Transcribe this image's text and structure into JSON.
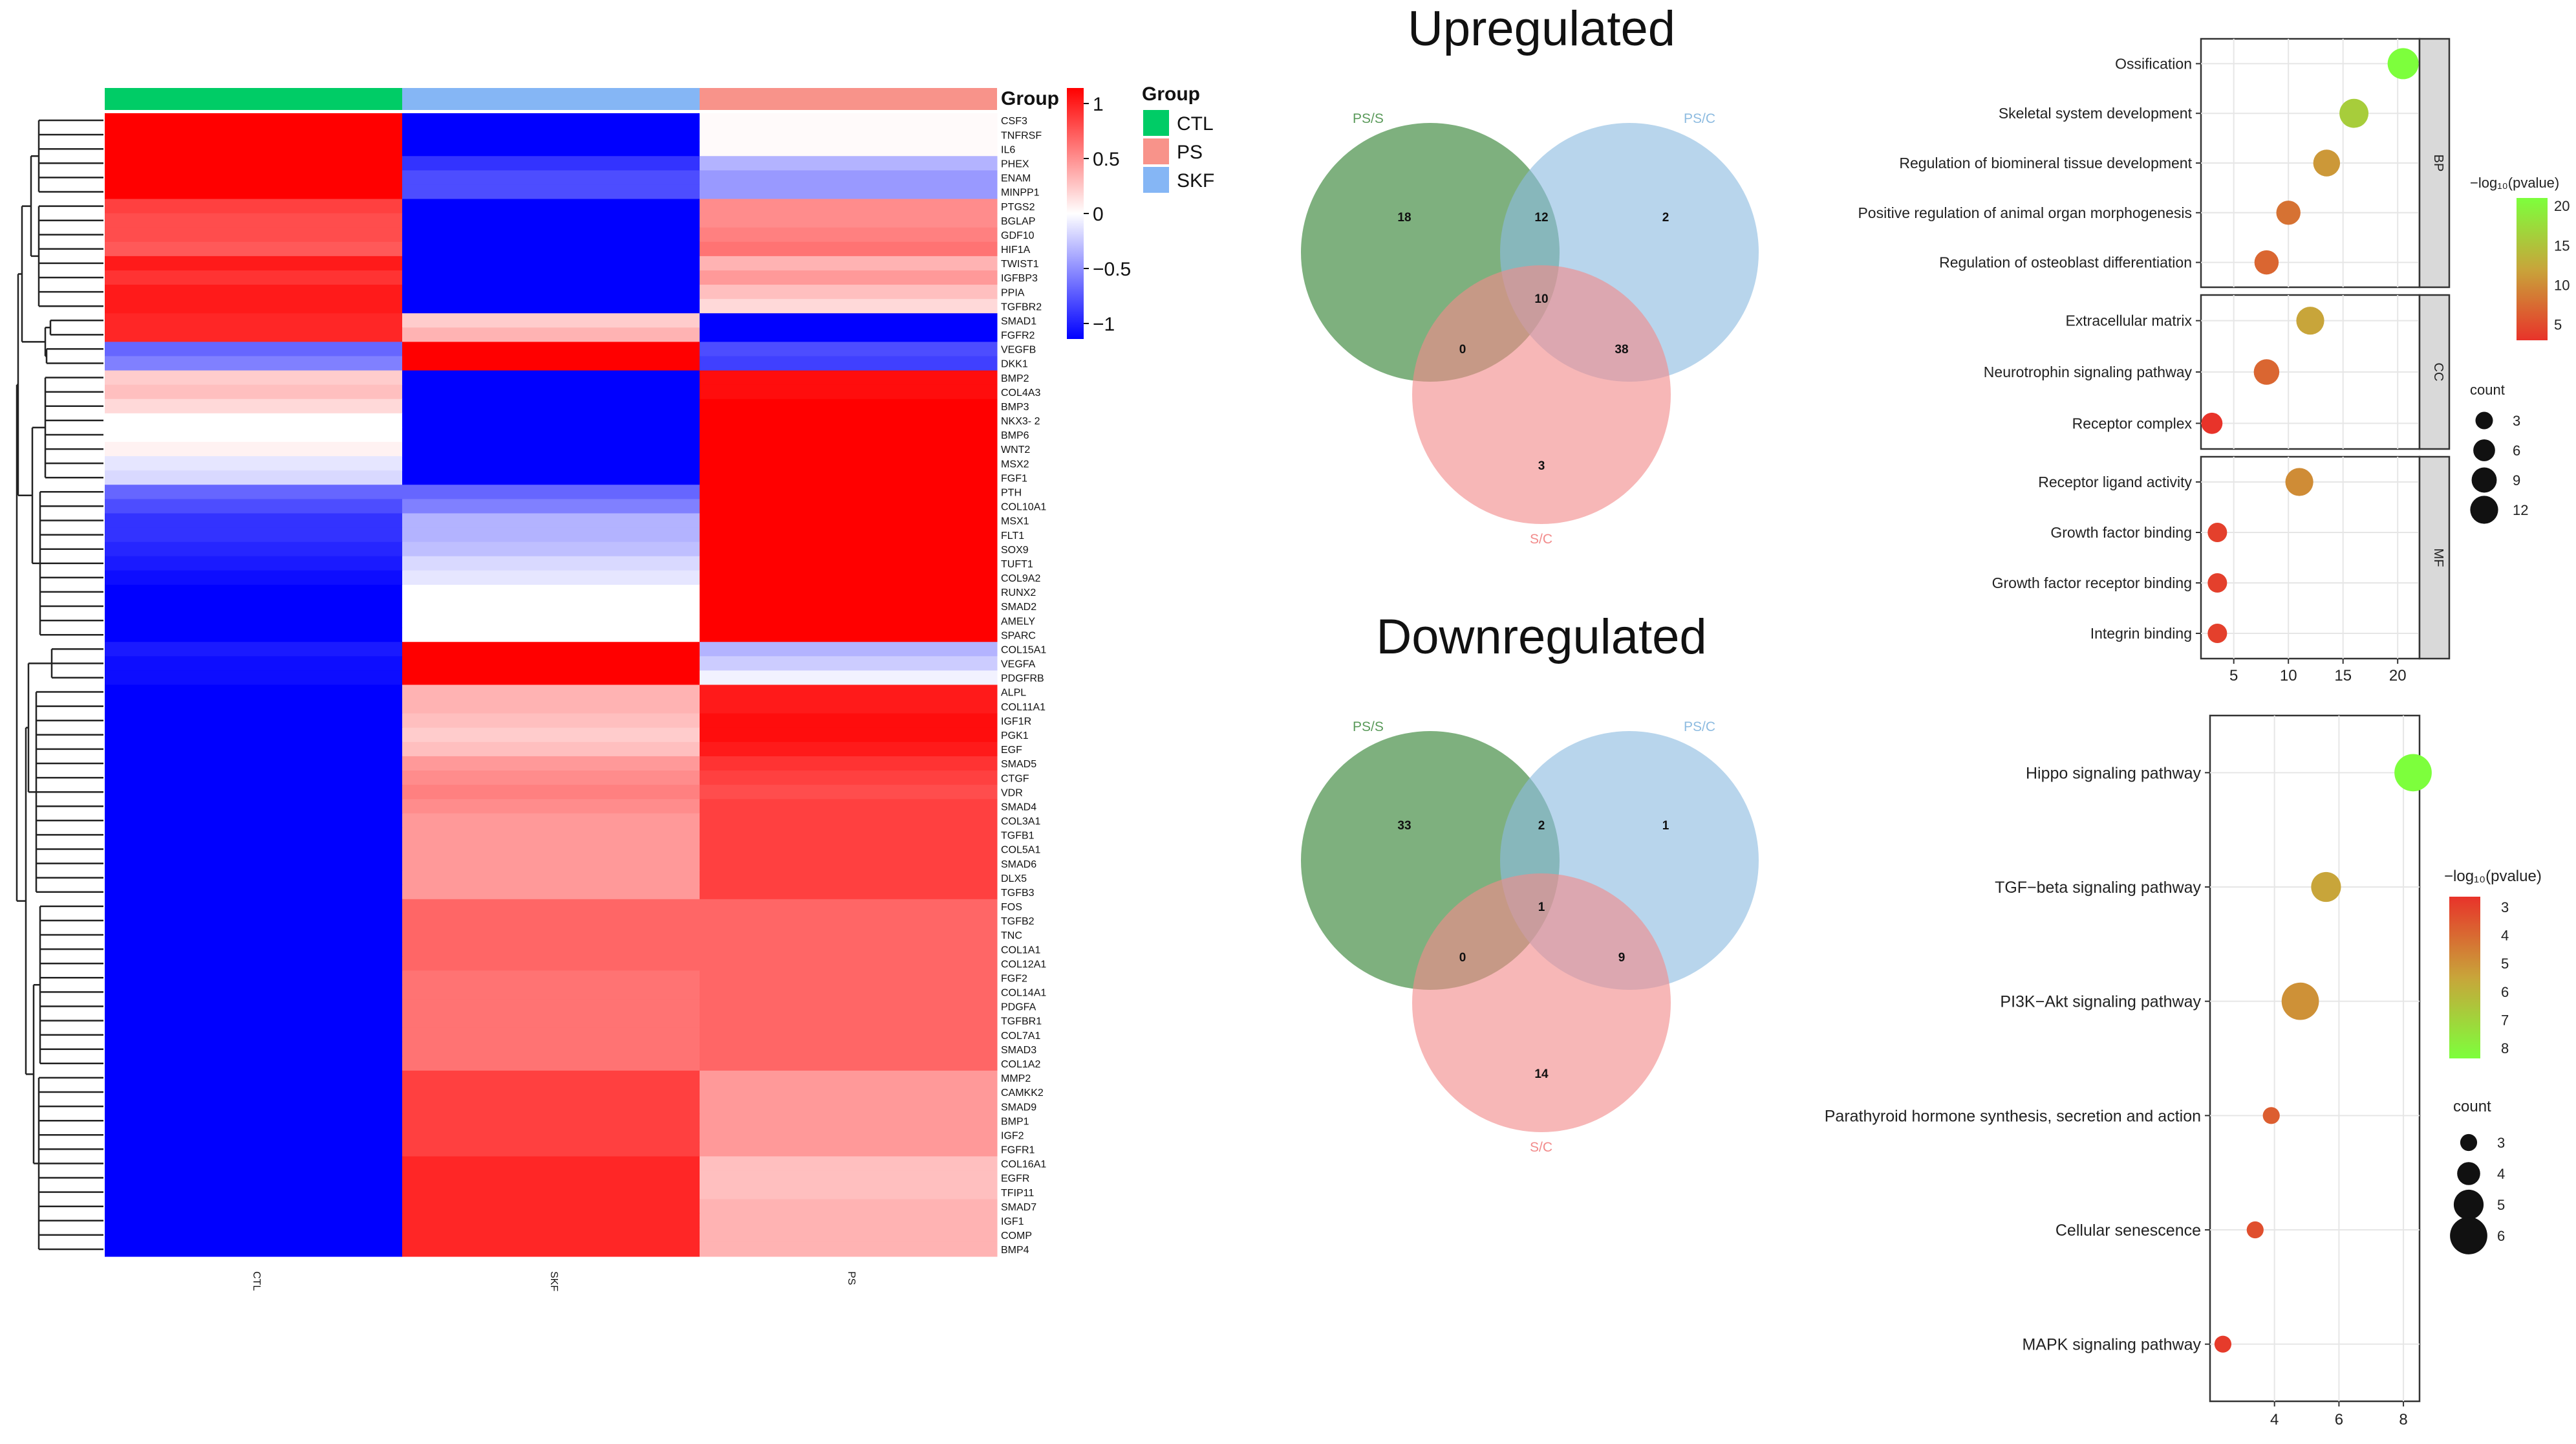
{
  "chart_data": [
    {
      "type": "heatmap",
      "id": "expression-heatmap",
      "columns": [
        "CTL",
        "SKF",
        "PS"
      ],
      "column_groups": [
        "CTL",
        "SKF",
        "PS"
      ],
      "legend_title": "Group",
      "legend_items": [
        {
          "label": "CTL",
          "color": "#00cc66"
        },
        {
          "label": "PS",
          "color": "#f8938a"
        },
        {
          "label": "SKF",
          "color": "#85b6f5"
        }
      ],
      "scale_title": "Group",
      "scale_ticks": [
        "1",
        "0.5",
        "0",
        "−0.5",
        "−1"
      ],
      "scale_values": [
        1,
        0.5,
        0,
        -0.5,
        -1
      ],
      "color_low": "#0000ff",
      "color_mid": "#ffffff",
      "color_high": "#ff0000",
      "rows": [
        {
          "gene": "CSF3",
          "values": [
            1.15,
            -1.15,
            0.02
          ]
        },
        {
          "gene": "TNFRSF",
          "values": [
            1.15,
            -1.15,
            0.02
          ]
        },
        {
          "gene": "IL6",
          "values": [
            1.15,
            -1.15,
            0.02
          ]
        },
        {
          "gene": "PHEX",
          "values": [
            1.15,
            -0.8,
            -0.3
          ]
        },
        {
          "gene": "ENAM",
          "values": [
            1.15,
            -0.7,
            -0.4
          ]
        },
        {
          "gene": "MINPP1",
          "values": [
            1.15,
            -0.7,
            -0.4
          ]
        },
        {
          "gene": "PTGS2",
          "values": [
            0.75,
            -1.15,
            0.45
          ]
        },
        {
          "gene": "BGLAP",
          "values": [
            0.7,
            -1.15,
            0.45
          ]
        },
        {
          "gene": "GDF10",
          "values": [
            0.7,
            -1.15,
            0.5
          ]
        },
        {
          "gene": "HIF1A",
          "values": [
            0.65,
            -1.15,
            0.55
          ]
        },
        {
          "gene": "TWIST1",
          "values": [
            0.9,
            -1.15,
            0.3
          ]
        },
        {
          "gene": "IGFBP3",
          "values": [
            0.8,
            -1.15,
            0.4
          ]
        },
        {
          "gene": "PPIA",
          "values": [
            0.9,
            -1.15,
            0.25
          ]
        },
        {
          "gene": "TGFBR2",
          "values": [
            0.9,
            -1.15,
            0.15
          ]
        },
        {
          "gene": "SMAD1",
          "values": [
            0.85,
            0.2,
            -1.15
          ]
        },
        {
          "gene": "FGFR2",
          "values": [
            0.85,
            0.3,
            -1.15
          ]
        },
        {
          "gene": "VEGFB",
          "values": [
            -0.6,
            1.15,
            -0.7
          ]
        },
        {
          "gene": "DKK1",
          "values": [
            -0.5,
            1.15,
            -0.75
          ]
        },
        {
          "gene": "BMP2",
          "values": [
            0.2,
            -1.15,
            0.95
          ]
        },
        {
          "gene": "COL4A3",
          "values": [
            0.25,
            -1.15,
            0.95
          ]
        },
        {
          "gene": "BMP3",
          "values": [
            0.15,
            -1.15,
            1.0
          ]
        },
        {
          "gene": "NKX3- 2",
          "values": [
            0.0,
            -1.15,
            1.0
          ]
        },
        {
          "gene": "BMP6",
          "values": [
            0.0,
            -1.15,
            1.0
          ]
        },
        {
          "gene": "WNT2",
          "values": [
            0.05,
            -1.15,
            1.0
          ]
        },
        {
          "gene": "MSX2",
          "values": [
            -0.1,
            -1.15,
            1.05
          ]
        },
        {
          "gene": "FGF1",
          "values": [
            -0.15,
            -1.15,
            1.05
          ]
        },
        {
          "gene": "PTH",
          "values": [
            -0.6,
            -0.6,
            1.15
          ]
        },
        {
          "gene": "COL10A1",
          "values": [
            -0.7,
            -0.5,
            1.15
          ]
        },
        {
          "gene": "MSX1",
          "values": [
            -0.8,
            -0.3,
            1.15
          ]
        },
        {
          "gene": "FLT1",
          "values": [
            -0.8,
            -0.3,
            1.15
          ]
        },
        {
          "gene": "SOX9",
          "values": [
            -0.85,
            -0.25,
            1.1
          ]
        },
        {
          "gene": "TUFT1",
          "values": [
            -0.9,
            -0.15,
            1.05
          ]
        },
        {
          "gene": "COL9A2",
          "values": [
            -0.95,
            -0.1,
            1.05
          ]
        },
        {
          "gene": "RUNX2",
          "values": [
            -1.0,
            0.0,
            1.05
          ]
        },
        {
          "gene": "SMAD2",
          "values": [
            -1.0,
            0.0,
            1.05
          ]
        },
        {
          "gene": "AMELY",
          "values": [
            -1.0,
            0.0,
            1.05
          ]
        },
        {
          "gene": "SPARC",
          "values": [
            -1.0,
            0.0,
            1.05
          ]
        },
        {
          "gene": "COL15A1",
          "values": [
            -0.9,
            1.1,
            -0.3
          ]
        },
        {
          "gene": "VEGFA",
          "values": [
            -0.95,
            1.1,
            -0.2
          ]
        },
        {
          "gene": "PDGFRB",
          "values": [
            -0.95,
            1.0,
            -0.05
          ]
        },
        {
          "gene": "ALPL",
          "values": [
            -1.15,
            0.3,
            0.9
          ]
        },
        {
          "gene": "COL11A1",
          "values": [
            -1.15,
            0.3,
            0.9
          ]
        },
        {
          "gene": "IGF1R",
          "values": [
            -1.15,
            0.25,
            0.95
          ]
        },
        {
          "gene": "PGK1",
          "values": [
            -1.15,
            0.2,
            0.95
          ]
        },
        {
          "gene": "EGF",
          "values": [
            -1.15,
            0.25,
            0.9
          ]
        },
        {
          "gene": "SMAD5",
          "values": [
            -1.15,
            0.4,
            0.8
          ]
        },
        {
          "gene": "CTGF",
          "values": [
            -1.15,
            0.45,
            0.75
          ]
        },
        {
          "gene": "VDR",
          "values": [
            -1.15,
            0.5,
            0.7
          ]
        },
        {
          "gene": "SMAD4",
          "values": [
            -1.15,
            0.45,
            0.75
          ]
        },
        {
          "gene": "COL3A1",
          "values": [
            -1.15,
            0.4,
            0.75
          ]
        },
        {
          "gene": "TGFB1",
          "values": [
            -1.15,
            0.4,
            0.75
          ]
        },
        {
          "gene": "COL5A1",
          "values": [
            -1.15,
            0.4,
            0.75
          ]
        },
        {
          "gene": "SMAD6",
          "values": [
            -1.15,
            0.4,
            0.75
          ]
        },
        {
          "gene": "DLX5",
          "values": [
            -1.15,
            0.4,
            0.75
          ]
        },
        {
          "gene": "TGFB3",
          "values": [
            -1.15,
            0.4,
            0.75
          ]
        },
        {
          "gene": "FOS",
          "values": [
            -1.15,
            0.6,
            0.6
          ]
        },
        {
          "gene": "TGFB2",
          "values": [
            -1.15,
            0.6,
            0.6
          ]
        },
        {
          "gene": "TNC",
          "values": [
            -1.15,
            0.6,
            0.6
          ]
        },
        {
          "gene": "COL1A1",
          "values": [
            -1.15,
            0.6,
            0.6
          ]
        },
        {
          "gene": "COL12A1",
          "values": [
            -1.15,
            0.6,
            0.6
          ]
        },
        {
          "gene": "FGF2",
          "values": [
            -1.15,
            0.55,
            0.6
          ]
        },
        {
          "gene": "COL14A1",
          "values": [
            -1.15,
            0.55,
            0.6
          ]
        },
        {
          "gene": "PDGFA",
          "values": [
            -1.15,
            0.55,
            0.6
          ]
        },
        {
          "gene": "TGFBR1",
          "values": [
            -1.15,
            0.55,
            0.6
          ]
        },
        {
          "gene": "COL7A1",
          "values": [
            -1.15,
            0.55,
            0.6
          ]
        },
        {
          "gene": "SMAD3",
          "values": [
            -1.15,
            0.55,
            0.6
          ]
        },
        {
          "gene": "COL1A2",
          "values": [
            -1.15,
            0.55,
            0.6
          ]
        },
        {
          "gene": "MMP2",
          "values": [
            -1.15,
            0.75,
            0.4
          ]
        },
        {
          "gene": "CAMKK2",
          "values": [
            -1.15,
            0.75,
            0.4
          ]
        },
        {
          "gene": "SMAD9",
          "values": [
            -1.15,
            0.75,
            0.4
          ]
        },
        {
          "gene": "BMP1",
          "values": [
            -1.15,
            0.75,
            0.4
          ]
        },
        {
          "gene": "IGF2",
          "values": [
            -1.15,
            0.75,
            0.4
          ]
        },
        {
          "gene": "FGFR1",
          "values": [
            -1.15,
            0.75,
            0.4
          ]
        },
        {
          "gene": "COL16A1",
          "values": [
            -1.15,
            0.85,
            0.25
          ]
        },
        {
          "gene": "EGFR",
          "values": [
            -1.15,
            0.85,
            0.25
          ]
        },
        {
          "gene": "TFIP11",
          "values": [
            -1.15,
            0.85,
            0.25
          ]
        },
        {
          "gene": "SMAD7",
          "values": [
            -1.15,
            0.85,
            0.3
          ]
        },
        {
          "gene": "IGF1",
          "values": [
            -1.15,
            0.85,
            0.3
          ]
        },
        {
          "gene": "COMP",
          "values": [
            -1.15,
            0.85,
            0.3
          ]
        },
        {
          "gene": "BMP4",
          "values": [
            -1.15,
            0.85,
            0.3
          ]
        }
      ]
    },
    {
      "type": "venn",
      "id": "venn-up",
      "title": "Upregulated",
      "sets": [
        {
          "label": "PS/S",
          "color": "#5a9a5a"
        },
        {
          "label": "PS/C",
          "color": "#8dbbe0"
        },
        {
          "label": "S/C",
          "color": "#f28b8b"
        }
      ],
      "regions": {
        "A_only": "18",
        "AB": "12",
        "B_only": "2",
        "ABC": "10",
        "AC": "0",
        "BC": "38",
        "C_only": "3"
      }
    },
    {
      "type": "venn",
      "id": "venn-down",
      "title": "Downregulated",
      "sets": [
        {
          "label": "PS/S",
          "color": "#5a9a5a"
        },
        {
          "label": "PS/C",
          "color": "#8dbbe0"
        },
        {
          "label": "S/C",
          "color": "#f28b8b"
        }
      ],
      "regions": {
        "A_only": "33",
        "AB": "2",
        "B_only": "1",
        "ABC": "1",
        "AC": "0",
        "BC": "9",
        "C_only": "14"
      }
    },
    {
      "type": "scatter",
      "id": "go-dotplot",
      "xlim": [
        2,
        22
      ],
      "xticks": [
        "5",
        "10",
        "15",
        "20"
      ],
      "xtick_values": [
        5,
        10,
        15,
        20
      ],
      "color_title": "−log₁₀(pvalue)",
      "color_ticks": [
        "20",
        "15",
        "10",
        "5"
      ],
      "color_tick_values": [
        20,
        15,
        10,
        5
      ],
      "color_range": [
        3,
        21
      ],
      "size_title": "count",
      "size_ticks": [
        "3",
        "6",
        "9",
        "12"
      ],
      "size_tick_values": [
        3,
        6,
        9,
        12
      ],
      "panels": [
        {
          "label": "BP",
          "terms": [
            {
              "term": "Ossification",
              "x": 20.5,
              "count": 12,
              "p": 21
            },
            {
              "term": "Skeletal system development",
              "x": 16,
              "count": 10,
              "p": 16
            },
            {
              "term": "Regulation of biomineral tissue development",
              "x": 13.5,
              "count": 8,
              "p": 11
            },
            {
              "term": "Positive regulation of animal organ morphogenesis",
              "x": 10,
              "count": 6,
              "p": 8
            },
            {
              "term": "Regulation of osteoblast differentiation",
              "x": 8,
              "count": 6,
              "p": 7
            }
          ]
        },
        {
          "label": "CC",
          "terms": [
            {
              "term": "Extracellular matrix",
              "x": 12,
              "count": 9,
              "p": 12
            },
            {
              "term": "Neurotrophin signaling pathway",
              "x": 8,
              "count": 7,
              "p": 7
            },
            {
              "term": "Receptor complex",
              "x": 3,
              "count": 4,
              "p": 3
            }
          ]
        },
        {
          "label": "MF",
          "terms": [
            {
              "term": "Receptor ligand activity",
              "x": 11,
              "count": 9,
              "p": 10
            },
            {
              "term": "Growth factor binding",
              "x": 3.5,
              "count": 3,
              "p": 4
            },
            {
              "term": "Growth factor receptor binding",
              "x": 3.5,
              "count": 3,
              "p": 4
            },
            {
              "term": "Integrin binding",
              "x": 3.5,
              "count": 3,
              "p": 4
            }
          ]
        }
      ]
    },
    {
      "type": "scatter",
      "id": "kegg-dotplot",
      "xlim": [
        2,
        8.5
      ],
      "xticks": [
        "4",
        "6",
        "8"
      ],
      "xtick_values": [
        4,
        6,
        8
      ],
      "color_title": "−log₁₀(pvalue)",
      "color_ticks": [
        "3",
        "4",
        "5",
        "6",
        "7",
        "8"
      ],
      "color_tick_values": [
        3,
        4,
        5,
        6,
        7,
        8
      ],
      "color_range": [
        2.7,
        8.5
      ],
      "size_title": "count",
      "size_ticks": [
        "3",
        "4",
        "5",
        "6"
      ],
      "size_tick_values": [
        3,
        4,
        5,
        6
      ],
      "terms": [
        {
          "term": "Hippo signaling pathway",
          "x": 8.3,
          "count": 6,
          "p": 8.5
        },
        {
          "term": "TGF−beta signaling pathway",
          "x": 5.6,
          "count": 5,
          "p": 5.6
        },
        {
          "term": "PI3K−Akt signaling pathway",
          "x": 4.8,
          "count": 6,
          "p": 5.1
        },
        {
          "term": "Parathyroid hormone synthesis, secretion and action",
          "x": 3.9,
          "count": 3,
          "p": 3.8
        },
        {
          "term": "Cellular senescence",
          "x": 3.4,
          "count": 3,
          "p": 3.4
        },
        {
          "term": "MAPK signaling pathway",
          "x": 2.4,
          "count": 3,
          "p": 2.9
        }
      ]
    }
  ]
}
